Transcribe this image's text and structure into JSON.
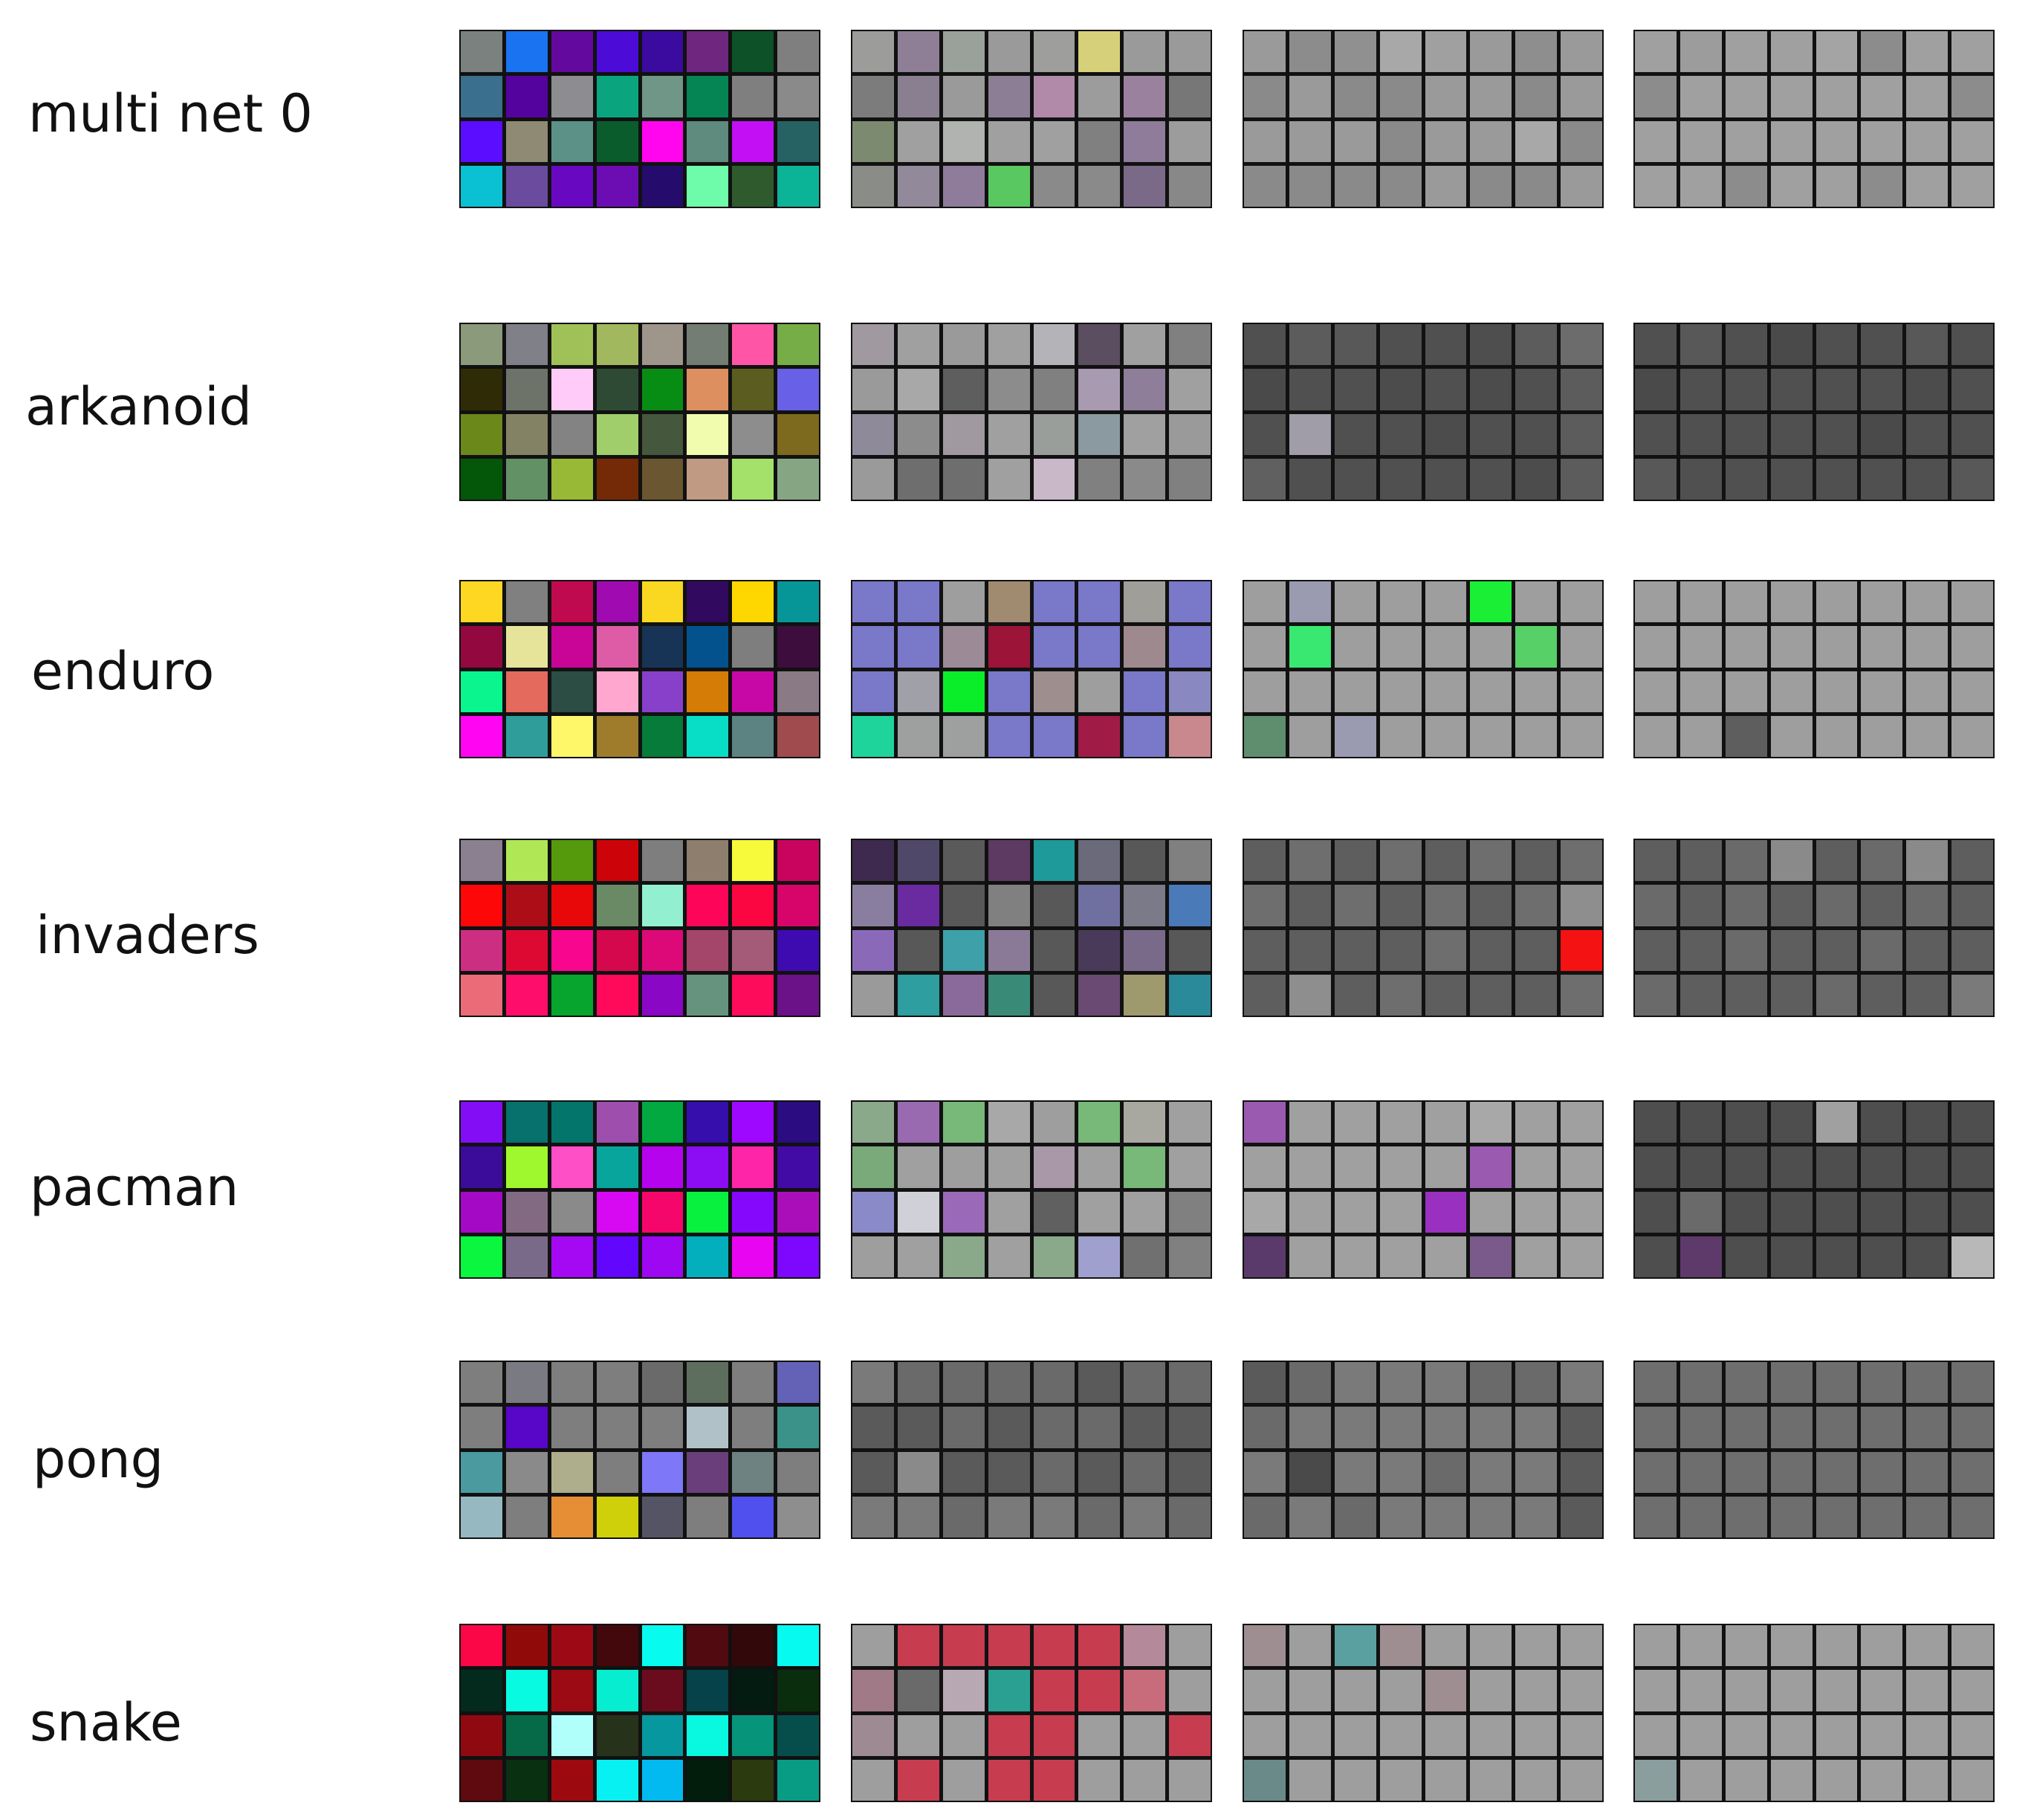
{
  "rows": [
    {
      "label": "multi net 0",
      "conv1": [
        "#7a817f",
        "#1a73f0",
        "#63099d",
        "#4c0bd6",
        "#3b0a9f",
        "#6e267e",
        "#0c5127",
        "#7f7f7f",
        "#3b6f8e",
        "#54039e",
        "#8d8d91",
        "#0aa57f",
        "#6f9686",
        "#058454",
        "#7f7f7f",
        "#8a8a8a",
        "#5a0dff",
        "#8f8a73",
        "#5b9186",
        "#0b5c2d",
        "#ff06ee",
        "#5f8a7e",
        "#c30ff4",
        "#266263",
        "#0ac0d3",
        "#6a4b9e",
        "#6808c1",
        "#6b0db2",
        "#250b6b",
        "#6efcaa",
        "#2f5a2d",
        "#0cb497"
      ],
      "conv2": [
        "#9c9c9a",
        "#8e7f97",
        "#9aa09a",
        "#9a9a9a",
        "#9e9e9c",
        "#d6d07a",
        "#9a9a9a",
        "#9a9a9a",
        "#7c7c7c",
        "#8a7f90",
        "#9a9a9a",
        "#8c7e94",
        "#b08aa8",
        "#9c9c9c",
        "#9a829e",
        "#777777",
        "#7c8a70",
        "#a0a0a0",
        "#b0b3b0",
        "#a0a0a0",
        "#a0a0a0",
        "#808080",
        "#8e7c9a",
        "#9c9c9c",
        "#8a8c88",
        "#928a9a",
        "#8e7c9a",
        "#5ac860",
        "#8a8a8a",
        "#8a8a8a",
        "#7a6a88",
        "#888888"
      ],
      "conv3": [
        "#9a9a9a",
        "#8c8c8c",
        "#909090",
        "#a8a8a8",
        "#a0a0a0",
        "#9a9a9a",
        "#8e8e8e",
        "#9a9a9a",
        "#8a8a8a",
        "#9a9a9a",
        "#8a8a8a",
        "#8a8a8a",
        "#9a9a9a",
        "#9a9a9a",
        "#8a8a8a",
        "#9a9a9a",
        "#9a9a9a",
        "#9a9a9a",
        "#9a9a9a",
        "#8a8a8a",
        "#9a9a9a",
        "#9a9a9a",
        "#a8a8a8",
        "#8a8a8a",
        "#8a8a8a",
        "#8a8a8a",
        "#8a8a8a",
        "#8a8a8a",
        "#9a9a9a",
        "#8a8a8a",
        "#8a8a8a",
        "#9a9a9a"
      ],
      "conv4": [
        "#a0a0a0",
        "#9c9c9c",
        "#a0a0a0",
        "#a0a0a0",
        "#a4a4a4",
        "#8c8c8c",
        "#a0a0a0",
        "#a0a0a0",
        "#8c8c8c",
        "#a0a0a0",
        "#a0a0a0",
        "#a0a0a0",
        "#a0a0a0",
        "#a0a0a0",
        "#a0a0a0",
        "#8c8c8c",
        "#a0a0a0",
        "#a0a0a0",
        "#a0a0a0",
        "#a0a0a0",
        "#a0a0a0",
        "#a0a0a0",
        "#a0a0a0",
        "#a0a0a0",
        "#a0a0a0",
        "#a0a0a0",
        "#8c8c8c",
        "#a0a0a0",
        "#a0a0a0",
        "#8c8c8c",
        "#a0a0a0",
        "#a0a0a0"
      ]
    },
    {
      "label": "arkanoid",
      "conv1": [
        "#8a9a7a",
        "#808088",
        "#9fc158",
        "#a1b85e",
        "#9e958b",
        "#737d73",
        "#ff55a6",
        "#76ad47",
        "#2f2b07",
        "#6e736a",
        "#ffccfa",
        "#2e4a34",
        "#088d14",
        "#de8f60",
        "#5b5d20",
        "#6860e6",
        "#6b881b",
        "#848264",
        "#838383",
        "#9fce6b",
        "#45583d",
        "#f2fcae",
        "#8d8d8d",
        "#7d6a1e",
        "#045609",
        "#629166",
        "#98b935",
        "#742a06",
        "#6a5630",
        "#c09a82",
        "#a3e16b",
        "#86a683"
      ],
      "conv2": [
        "#a09aa0",
        "#a0a0a0",
        "#9a9a9a",
        "#a0a0a0",
        "#b4b4b8",
        "#5a4e60",
        "#a0a0a0",
        "#808080",
        "#9a9a9a",
        "#a8a8a8",
        "#5e5e5e",
        "#8c8c8c",
        "#808080",
        "#a89ab0",
        "#8e7e9a",
        "#a0a0a0",
        "#8e8a9a",
        "#8c8c8c",
        "#a09aa0",
        "#a0a0a0",
        "#9a9e9a",
        "#8a9aa0",
        "#a0a0a0",
        "#9a9a9a",
        "#9a9a9a",
        "#6e6e6e",
        "#6e6e6e",
        "#a0a0a0",
        "#c8b8c8",
        "#808080",
        "#8a8a8a",
        "#808080"
      ],
      "conv3": [
        "#505050",
        "#5c5c5c",
        "#585858",
        "#505050",
        "#505050",
        "#4e4e4e",
        "#5c5c5c",
        "#6c6c6c",
        "#4a4a4a",
        "#505050",
        "#505050",
        "#4c4c4c",
        "#505050",
        "#4c4c4c",
        "#505050",
        "#5c5c5c",
        "#505050",
        "#a09ca8",
        "#505050",
        "#505050",
        "#4c4c4c",
        "#505050",
        "#505050",
        "#5c5c5c",
        "#606060",
        "#505050",
        "#505050",
        "#505050",
        "#505050",
        "#505050",
        "#4c4c4c",
        "#5c5c5c"
      ],
      "conv4": [
        "#505050",
        "#585858",
        "#505050",
        "#4a4a4a",
        "#505050",
        "#505050",
        "#585858",
        "#505050",
        "#4a4a4a",
        "#505050",
        "#505050",
        "#505050",
        "#505050",
        "#505050",
        "#4c4c4c",
        "#505050",
        "#505050",
        "#505050",
        "#505050",
        "#505050",
        "#505050",
        "#4a4a4a",
        "#505050",
        "#505050",
        "#585858",
        "#505050",
        "#505050",
        "#505050",
        "#505050",
        "#505050",
        "#505050",
        "#585858"
      ]
    },
    {
      "label": "enduro",
      "conv1": [
        "#fdd721",
        "#808080",
        "#c00a4f",
        "#a00ab1",
        "#fad821",
        "#31095f",
        "#ffd700",
        "#079698",
        "#93093f",
        "#e6e49a",
        "#c80596",
        "#de5ba6",
        "#173456",
        "#03528e",
        "#7e7e7e",
        "#3d0d3d",
        "#0af58e",
        "#e56a5e",
        "#2b4d44",
        "#ffa7cf",
        "#8840cb",
        "#d47c06",
        "#c808a6",
        "#8a7a86",
        "#ff05f2",
        "#2f9e9b",
        "#fff76a",
        "#9e7c2c",
        "#077b39",
        "#08dec5",
        "#5c8282",
        "#a04c4e"
      ],
      "conv2": [
        "#7a78c8",
        "#7a78c8",
        "#9e9e9e",
        "#a08a70",
        "#7a78c8",
        "#7a78c8",
        "#a09e98",
        "#7a78c8",
        "#7a78c8",
        "#7a78c8",
        "#9c8a96",
        "#9c1438",
        "#7a78c8",
        "#7a78c8",
        "#9e8a8e",
        "#7a78c8",
        "#7a78c8",
        "#a0a0a8",
        "#0aee2a",
        "#7a78c8",
        "#9e8e8e",
        "#9e9e9e",
        "#7a78c8",
        "#8a88c0",
        "#1ed49a",
        "#9ea0a0",
        "#9ea0a0",
        "#7a78c8",
        "#7a78c8",
        "#a01c46",
        "#7a78c8",
        "#c8888e"
      ],
      "conv3": [
        "#9e9e9e",
        "#9a9ab0",
        "#9e9e9e",
        "#9e9e9e",
        "#9e9e9e",
        "#1aef36",
        "#9e9e9e",
        "#9e9e9e",
        "#9e9e9e",
        "#38e870",
        "#9e9e9e",
        "#9e9e9e",
        "#9e9e9e",
        "#9e9e9e",
        "#58d068",
        "#9e9e9e",
        "#9e9e9e",
        "#9e9e9e",
        "#9e9e9e",
        "#9e9e9e",
        "#9e9e9e",
        "#9e9e9e",
        "#9e9e9e",
        "#9e9e9e",
        "#5e8e6e",
        "#9e9e9e",
        "#9a9ab0",
        "#9e9e9e",
        "#9e9e9e",
        "#9e9e9e",
        "#9e9e9e",
        "#9e9e9e"
      ],
      "conv4": [
        "#9e9e9e",
        "#9e9e9e",
        "#9e9e9e",
        "#9e9e9e",
        "#9e9e9e",
        "#9e9e9e",
        "#9e9e9e",
        "#9e9e9e",
        "#9e9e9e",
        "#9e9e9e",
        "#9e9e9e",
        "#9e9e9e",
        "#9e9e9e",
        "#9e9e9e",
        "#9e9e9e",
        "#9e9e9e",
        "#9e9e9e",
        "#9e9e9e",
        "#9e9e9e",
        "#9e9e9e",
        "#9e9e9e",
        "#9e9e9e",
        "#9e9e9e",
        "#9e9e9e",
        "#9e9e9e",
        "#9e9e9e",
        "#5e5e5e",
        "#9e9e9e",
        "#9e9e9e",
        "#9e9e9e",
        "#9e9e9e",
        "#9e9e9e"
      ]
    },
    {
      "label": "invaders",
      "conv1": [
        "#8a8090",
        "#b0e754",
        "#549a0c",
        "#cc0409",
        "#7e7e7e",
        "#8e7e6e",
        "#f7f93b",
        "#c9045e",
        "#fe0708",
        "#ac0d17",
        "#e80709",
        "#6a8a66",
        "#92efcf",
        "#fd0659",
        "#fc0642",
        "#d7046a",
        "#cc2f82",
        "#de0933",
        "#f9068e",
        "#d5074d",
        "#de0979",
        "#a4456a",
        "#a45b77",
        "#3e0bb1",
        "#ec6b78",
        "#fe0e6a",
        "#07a42e",
        "#ff0a5a",
        "#8b07c6",
        "#66937d",
        "#fe0c5c",
        "#6b1289"
      ],
      "conv2": [
        "#3e2a4e",
        "#504868",
        "#5a5a5a",
        "#5c3a62",
        "#1e9a9a",
        "#6a6a7a",
        "#585858",
        "#808080",
        "#8a7ea0",
        "#6a2aa0",
        "#585858",
        "#808080",
        "#585858",
        "#7070a0",
        "#7a7a88",
        "#4a7ab8",
        "#8a6ab8",
        "#585858",
        "#3ea0a8",
        "#8a7a98",
        "#585858",
        "#4a3a5a",
        "#7a6a8a",
        "#585858",
        "#9a9a9a",
        "#2e9ea0",
        "#8a6a9a",
        "#3a8a78",
        "#585858",
        "#6a4a72",
        "#9e9a6e",
        "#2a8a9a"
      ],
      "conv3": [
        "#5e5e5e",
        "#6e6e6e",
        "#5e5e5e",
        "#6e6e6e",
        "#5e5e5e",
        "#6e6e6e",
        "#5e5e5e",
        "#6e6e6e",
        "#6e6e6e",
        "#5e5e5e",
        "#6e6e6e",
        "#5e5e5e",
        "#6e6e6e",
        "#5e5e5e",
        "#6e6e6e",
        "#8e8e8e",
        "#5e5e5e",
        "#5e5e5e",
        "#5e5e5e",
        "#5e5e5e",
        "#6e6e6e",
        "#5e5e5e",
        "#5e5e5e",
        "#f51212",
        "#5e5e5e",
        "#8e8e8e",
        "#5e5e5e",
        "#6e6e6e",
        "#5e5e5e",
        "#5e5e5e",
        "#5e5e5e",
        "#6e6e6e"
      ],
      "conv4": [
        "#5e5e5e",
        "#5e5e5e",
        "#6a6a6a",
        "#8a8a8a",
        "#5e5e5e",
        "#6a6a6a",
        "#8a8a8a",
        "#5e5e5e",
        "#6a6a6a",
        "#5e5e5e",
        "#6a6a6a",
        "#5e5e5e",
        "#6a6a6a",
        "#5e5e5e",
        "#6a6a6a",
        "#5e5e5e",
        "#5e5e5e",
        "#5e5e5e",
        "#6a6a6a",
        "#5e5e5e",
        "#5e5e5e",
        "#6a6a6a",
        "#5e5e5e",
        "#5e5e5e",
        "#6a6a6a",
        "#5e5e5e",
        "#5e5e5e",
        "#5e5e5e",
        "#6a6a6a",
        "#5e5e5e",
        "#5e5e5e",
        "#7a7a7a"
      ]
    },
    {
      "label": "pacman",
      "conv1": [
        "#830ef5",
        "#06716d",
        "#04756b",
        "#9e4fad",
        "#02a840",
        "#350eac",
        "#9f08fe",
        "#2b0c81",
        "#3a0c99",
        "#9ff72e",
        "#ff4fc6",
        "#08a59c",
        "#b503ee",
        "#8c0cf4",
        "#ff25a9",
        "#420ba5",
        "#a409c6",
        "#836a83",
        "#8a8a8a",
        "#d708f2",
        "#f5066b",
        "#08f13e",
        "#8608fc",
        "#aa0eb8",
        "#0af63f",
        "#7a6a8a",
        "#a509f4",
        "#6206fe",
        "#9d07f2",
        "#04afbd",
        "#e805f2",
        "#7d08fd"
      ],
      "conv2": [
        "#8aa88a",
        "#9a6ab0",
        "#78b878",
        "#a8a8a8",
        "#9e9e9e",
        "#78b878",
        "#a8a8a0",
        "#a0a0a0",
        "#7aaa7a",
        "#a0a0a0",
        "#9e9e9e",
        "#a0a0a0",
        "#a898a8",
        "#a0a0a0",
        "#78b878",
        "#a0a0a0",
        "#8a8ac8",
        "#d0d0d8",
        "#9a6ab8",
        "#a0a0a0",
        "#606060",
        "#a0a0a0",
        "#a0a0a0",
        "#808080",
        "#9e9e9e",
        "#a0a0a0",
        "#8aa88a",
        "#a0a0a0",
        "#8aa88a",
        "#a0a0ce",
        "#707070",
        "#808080"
      ],
      "conv3": [
        "#9a5ab0",
        "#a0a0a0",
        "#a0a0a0",
        "#a0a0a0",
        "#a0a0a0",
        "#a8a8a8",
        "#a0a0a0",
        "#a0a0a0",
        "#a0a0a0",
        "#a0a0a0",
        "#a0a0a0",
        "#a0a0a0",
        "#a0a0a0",
        "#9a5ab0",
        "#a0a0a0",
        "#a0a0a0",
        "#a8a8a8",
        "#a0a0a0",
        "#a0a0a0",
        "#a0a0a0",
        "#9a30c0",
        "#a0a0a0",
        "#a0a0a0",
        "#a0a0a0",
        "#5a3a6a",
        "#a0a0a0",
        "#a0a0a0",
        "#a0a0a0",
        "#a0a0a0",
        "#7a5a8a",
        "#a0a0a0",
        "#a0a0a0"
      ],
      "conv4": [
        "#4e4e4e",
        "#4e4e4e",
        "#4e4e4e",
        "#4e4e4e",
        "#a0a0a0",
        "#4e4e4e",
        "#4e4e4e",
        "#4e4e4e",
        "#4e4e4e",
        "#4e4e4e",
        "#4e4e4e",
        "#4e4e4e",
        "#4e4e4e",
        "#4e4e4e",
        "#4e4e4e",
        "#4e4e4e",
        "#4e4e4e",
        "#6a6a6a",
        "#4e4e4e",
        "#4e4e4e",
        "#4e4e4e",
        "#4e4e4e",
        "#4e4e4e",
        "#4e4e4e",
        "#4e4e4e",
        "#5e3a6a",
        "#4e4e4e",
        "#4e4e4e",
        "#4e4e4e",
        "#4e4e4e",
        "#4e4e4e",
        "#b8b8b8"
      ]
    },
    {
      "label": "pong",
      "conv1": [
        "#7e7e7e",
        "#7a7a82",
        "#7e7e7e",
        "#7e7e7e",
        "#6a6a6a",
        "#5e6e5e",
        "#7e7e7e",
        "#6462b6",
        "#7e7e7e",
        "#5806c7",
        "#7e7e7e",
        "#7e7e7e",
        "#7e7e7e",
        "#b0c2c8",
        "#7e7e7e",
        "#3a9288",
        "#4a9aa0",
        "#8a8a8a",
        "#aeae8c",
        "#7e7e7e",
        "#7e78f8",
        "#6a3e7a",
        "#6e8282",
        "#7e7e7e",
        "#96b8c0",
        "#7e7e7e",
        "#e68e36",
        "#d0d00a",
        "#545464",
        "#7e7e7e",
        "#5050ee",
        "#8e8e8e"
      ],
      "conv2": [
        "#7a7a7a",
        "#6a6a6a",
        "#6a6a6a",
        "#6a6a6a",
        "#6a6a6a",
        "#5a5a5a",
        "#6a6a6a",
        "#6a6a6a",
        "#5a5a5a",
        "#5a5a5a",
        "#6a6a6a",
        "#5a5a5a",
        "#6a6a6a",
        "#6a6a6a",
        "#5a5a5a",
        "#5a5a5a",
        "#5a5a5a",
        "#8a8a8a",
        "#5a5a5a",
        "#5a5a5a",
        "#6a6a6a",
        "#5a5a5a",
        "#6a6a6a",
        "#5a5a5a",
        "#7a7a7a",
        "#7a7a7a",
        "#6a6a6a",
        "#7a7a7a",
        "#7a7a7a",
        "#6a6a6a",
        "#7a7a7a",
        "#6a6a6a"
      ],
      "conv3": [
        "#5a5a5a",
        "#6a6a6a",
        "#7a7a7a",
        "#7a7a7a",
        "#7a7a7a",
        "#6a6a6a",
        "#6a6a6a",
        "#7a7a7a",
        "#6a6a6a",
        "#7a7a7a",
        "#7a7a7a",
        "#7a7a7a",
        "#7a7a7a",
        "#7a7a7a",
        "#7a7a7a",
        "#5a5a5a",
        "#7a7a7a",
        "#4a4a4a",
        "#7a7a7a",
        "#7a7a7a",
        "#6a6a6a",
        "#7a7a7a",
        "#7a7a7a",
        "#5a5a5a",
        "#6a6a6a",
        "#7a7a7a",
        "#6a6a6a",
        "#7a7a7a",
        "#7a7a7a",
        "#7a7a7a",
        "#7a7a7a",
        "#5a5a5a"
      ],
      "conv4": [
        "#6e6e6e",
        "#6e6e6e",
        "#6e6e6e",
        "#6e6e6e",
        "#6e6e6e",
        "#6e6e6e",
        "#6e6e6e",
        "#6e6e6e",
        "#6e6e6e",
        "#6e6e6e",
        "#6e6e6e",
        "#6e6e6e",
        "#6e6e6e",
        "#6e6e6e",
        "#6e6e6e",
        "#6e6e6e",
        "#6e6e6e",
        "#6e6e6e",
        "#6e6e6e",
        "#6e6e6e",
        "#6e6e6e",
        "#6e6e6e",
        "#6e6e6e",
        "#6e6e6e",
        "#6e6e6e",
        "#6e6e6e",
        "#6e6e6e",
        "#6e6e6e",
        "#6e6e6e",
        "#6e6e6e",
        "#6e6e6e",
        "#6e6e6e"
      ]
    },
    {
      "label": "snake",
      "conv1": [
        "#fb0747",
        "#900a0a",
        "#9d0a15",
        "#42080c",
        "#08fbef",
        "#520a11",
        "#33080a",
        "#06faf0",
        "#032a1d",
        "#08fae1",
        "#9c0a13",
        "#06edcf",
        "#6b0c1e",
        "#054249",
        "#031b11",
        "#0a2d0d",
        "#8e0a10",
        "#066a48",
        "#b0fffa",
        "#27321a",
        "#07979f",
        "#08f8e0",
        "#06947a",
        "#054e4b",
        "#5e0a0e",
        "#093011",
        "#9c0a10",
        "#08f1f2",
        "#03baf0",
        "#021d0c",
        "#2c3a10",
        "#089c84"
      ],
      "conv2": [
        "#9e9e9e",
        "#c83c50",
        "#c83c50",
        "#c83c50",
        "#c83c50",
        "#c83c50",
        "#b48a9a",
        "#9e9e9e",
        "#a07a86",
        "#6a6a6a",
        "#b8a8b4",
        "#2aa092",
        "#c83c50",
        "#c83c50",
        "#c86c7c",
        "#9e9e9e",
        "#9e8a92",
        "#9e9e9e",
        "#9e9e9e",
        "#c83c50",
        "#c83c50",
        "#9e9e9e",
        "#9e9e9e",
        "#c83c50",
        "#9e9e9e",
        "#c83c50",
        "#9e9e9e",
        "#c83c50",
        "#c83c50",
        "#9e9e9e",
        "#9e9e9e",
        "#9e9e9e"
      ],
      "conv3": [
        "#9e8e92",
        "#9e9e9e",
        "#5aa0a0",
        "#9e8e92",
        "#9e9e9e",
        "#9e9e9e",
        "#9e9e9e",
        "#9e9e9e",
        "#9e9e9e",
        "#9e9e9e",
        "#9e9e9e",
        "#9e9e9e",
        "#9e8e92",
        "#9e9e9e",
        "#9e9e9e",
        "#9e9e9e",
        "#9e9e9e",
        "#9e9e9e",
        "#9e9e9e",
        "#9e9e9e",
        "#9e9e9e",
        "#9e9e9e",
        "#9e9e9e",
        "#9e9e9e",
        "#6a8a8a",
        "#9e9e9e",
        "#9e9e9e",
        "#9e9e9e",
        "#9e9e9e",
        "#9e9e9e",
        "#9e9e9e",
        "#9e9e9e"
      ],
      "conv4": [
        "#9e9e9e",
        "#9e9e9e",
        "#9e9e9e",
        "#9e9e9e",
        "#9e9e9e",
        "#9e9e9e",
        "#9e9e9e",
        "#9e9e9e",
        "#9e9e9e",
        "#9e9e9e",
        "#9e9e9e",
        "#9e9e9e",
        "#9e9e9e",
        "#9e9e9e",
        "#9e9e9e",
        "#9e9e9e",
        "#9e9e9e",
        "#9e9e9e",
        "#9e9e9e",
        "#9e9e9e",
        "#9e9e9e",
        "#9e9e9e",
        "#9e9e9e",
        "#9e9e9e",
        "#8a9e9e",
        "#9e9e9e",
        "#9e9e9e",
        "#9e9e9e",
        "#9e9e9e",
        "#9e9e9e",
        "#9e9e9e",
        "#9e9e9e"
      ]
    }
  ]
}
